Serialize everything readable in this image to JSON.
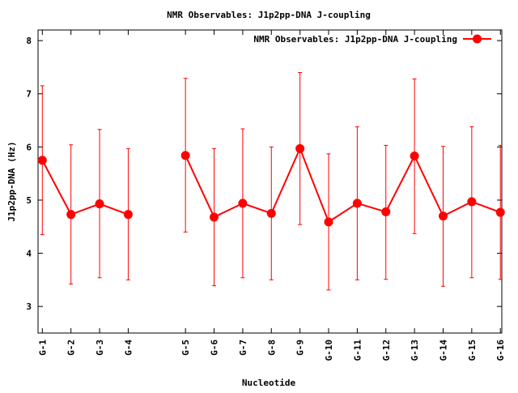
{
  "chart_data": {
    "type": "line",
    "title": "NMR Observables: J1p2pp-DNA J-coupling",
    "xlabel": "Nucleotide",
    "ylabel": "J1p2pp-DNA (Hz)",
    "ylim": [
      2.5,
      8.2
    ],
    "yticks": [
      3,
      4,
      5,
      6,
      7,
      8
    ],
    "x_positions": [
      1,
      2,
      3,
      4,
      6,
      7,
      8,
      9,
      10,
      11,
      12,
      13,
      14,
      15,
      16,
      17
    ],
    "xlim": [
      0.85,
      17.05
    ],
    "categories": [
      "G-1",
      "G-2",
      "G-3",
      "G-4",
      "G-5",
      "G-6",
      "G-7",
      "G-8",
      "G-9",
      "G-10",
      "G-11",
      "G-12",
      "G-13",
      "G-14",
      "G-15",
      "G-16"
    ],
    "segments": [
      [
        0,
        1,
        2,
        3
      ],
      [
        4,
        5,
        6,
        7,
        8,
        9,
        10,
        11,
        12,
        13,
        14,
        15
      ]
    ],
    "series": [
      {
        "name": "NMR Observables: J1p2pp-DNA J-coupling",
        "color": "#ff0000",
        "values": [
          5.75,
          4.73,
          4.93,
          4.73,
          5.84,
          4.68,
          4.94,
          4.75,
          5.97,
          4.59,
          4.94,
          4.78,
          5.83,
          4.7,
          4.97,
          4.77
        ],
        "err_low": [
          4.35,
          3.42,
          3.54,
          3.5,
          4.4,
          3.39,
          3.54,
          3.5,
          4.54,
          3.31,
          3.5,
          3.51,
          4.37,
          3.38,
          3.54,
          3.51
        ],
        "err_high": [
          7.15,
          6.04,
          6.33,
          5.97,
          7.29,
          5.97,
          6.34,
          6.0,
          7.4,
          5.87,
          6.38,
          6.03,
          7.28,
          6.01,
          6.38,
          6.03
        ]
      }
    ],
    "legend": "top-right",
    "grid": false
  }
}
